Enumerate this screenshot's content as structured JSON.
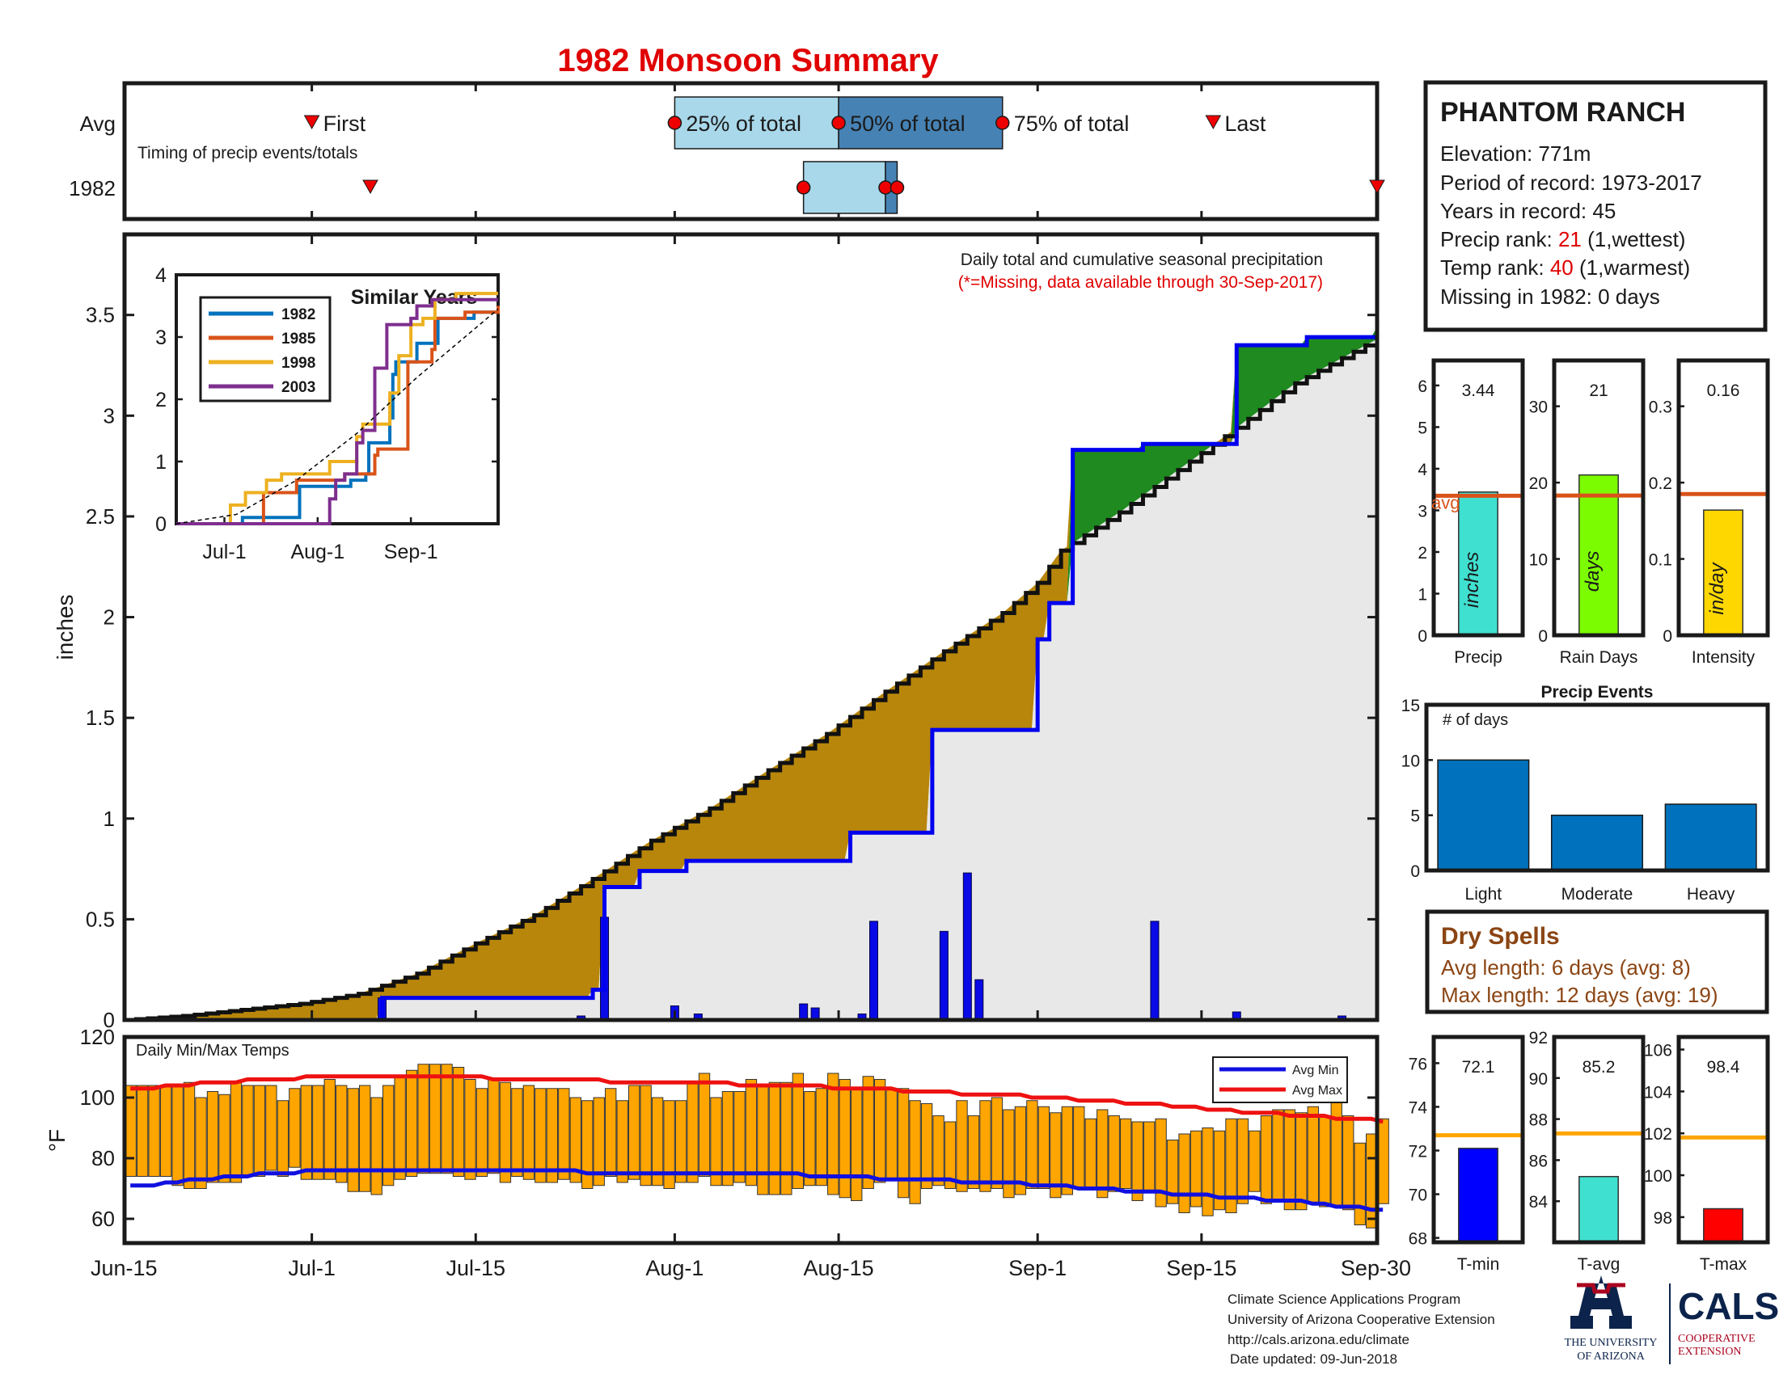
{
  "title": "1982 Monsoon Summary",
  "colors": {
    "title": "#e00000",
    "cum_precip": "#0000ee",
    "avg_line": "#111111",
    "above_avg": "#1f8a1f",
    "below_avg": "#b8860b",
    "bg_fill": "#e8e8e8",
    "bars": "#0a0ae6",
    "temp_bar": "#ffa500",
    "avg_min": "#1010e0",
    "avg_max": "#ee1111"
  },
  "timing": {
    "row_labels": [
      "Avg",
      "1982"
    ],
    "note": "Timing of precip events/totals",
    "first_label": "First",
    "last_label": "Last",
    "q25_label": "25% of total",
    "q50_label": "50% of total",
    "q75_label": "75% of total",
    "avg": {
      "first": 16,
      "q25": 47,
      "q50": 61,
      "q75": 75,
      "last": 93
    },
    "year": {
      "first": 21,
      "q25": 58,
      "q50": 65,
      "q75": 66,
      "last": 107
    }
  },
  "main": {
    "ylabel": "inches",
    "yticks": [
      "0",
      "0.5",
      "1",
      "1.5",
      "2",
      "2.5",
      "3",
      "3.5"
    ],
    "note1": "Daily total and cumulative seasonal precipitation",
    "note2": "(*=Missing, data available through 30-Sep-2017)"
  },
  "chart_data": [
    {
      "type": "area",
      "name": "cumulative_precip",
      "x_unit": "day of season (0 = Jun-15, 107 = Sep-30)",
      "xlim": [
        0,
        107
      ],
      "ylim": [
        0,
        3.9
      ],
      "ylabel": "inches",
      "series": [
        {
          "name": "1982 cumulative",
          "x": [
            0,
            22,
            40,
            41,
            43,
            44,
            48,
            62,
            62,
            69,
            69,
            75,
            78,
            79,
            81,
            87,
            95,
            101,
            107
          ],
          "y": [
            0,
            0.11,
            0.15,
            0.66,
            0.66,
            0.74,
            0.79,
            0.79,
            0.93,
            0.93,
            1.44,
            1.44,
            1.89,
            2.07,
            2.83,
            2.86,
            3.35,
            3.39,
            3.44
          ]
        },
        {
          "name": "average cumulative",
          "x": [
            0,
            5,
            10,
            15,
            20,
            25,
            30,
            35,
            40,
            45,
            50,
            55,
            60,
            65,
            70,
            75,
            78,
            80,
            85,
            90,
            95,
            100,
            107
          ],
          "y": [
            0,
            0.02,
            0.05,
            0.08,
            0.13,
            0.23,
            0.38,
            0.52,
            0.7,
            0.89,
            1.05,
            1.24,
            1.42,
            1.63,
            1.83,
            2.02,
            2.17,
            2.33,
            2.52,
            2.73,
            2.94,
            3.16,
            3.38
          ]
        }
      ],
      "daily_bars": [
        {
          "x": 22,
          "y": 0.11
        },
        {
          "x": 39,
          "y": 0.02
        },
        {
          "x": 41,
          "y": 0.51
        },
        {
          "x": 47,
          "y": 0.07
        },
        {
          "x": 49,
          "y": 0.03
        },
        {
          "x": 58,
          "y": 0.08
        },
        {
          "x": 59,
          "y": 0.06
        },
        {
          "x": 63,
          "y": 0.03
        },
        {
          "x": 64,
          "y": 0.49
        },
        {
          "x": 70,
          "y": 0.44
        },
        {
          "x": 72,
          "y": 0.73
        },
        {
          "x": 73,
          "y": 0.2
        },
        {
          "x": 88,
          "y": 0.49
        },
        {
          "x": 95,
          "y": 0.04
        },
        {
          "x": 104,
          "y": 0.02
        }
      ]
    },
    {
      "type": "line",
      "name": "similar_years",
      "title": "Similar Years",
      "x_unit": "day of season",
      "xlim": [
        0,
        107
      ],
      "ylim": [
        0,
        4
      ],
      "xticks": [
        "Jul-1",
        "Aug-1",
        "Sep-1"
      ],
      "yticks": [
        "0",
        "1",
        "2",
        "3",
        "4"
      ],
      "series": [
        {
          "name": "1982",
          "color": "#0072bd",
          "x": [
            0,
            21,
            22,
            40,
            41,
            58,
            63,
            64,
            69,
            71,
            72,
            73,
            80,
            86,
            87,
            99,
            107
          ],
          "y": [
            0,
            0,
            0.1,
            0.1,
            0.6,
            0.7,
            0.8,
            1.3,
            1.3,
            1.7,
            2.4,
            2.6,
            2.9,
            2.9,
            3.3,
            3.4,
            3.44
          ]
        },
        {
          "name": "1985",
          "color": "#d95319",
          "x": [
            0,
            28,
            29,
            40,
            46,
            56,
            66,
            67,
            69,
            76,
            77,
            85,
            86,
            96,
            107
          ],
          "y": [
            0,
            0,
            0.5,
            0.7,
            0.7,
            0.8,
            1.1,
            1.2,
            1.2,
            1.2,
            2.6,
            2.8,
            3.3,
            3.4,
            3.5
          ]
        },
        {
          "name": "1998",
          "color": "#edb120",
          "x": [
            0,
            17,
            18,
            23,
            30,
            34,
            35,
            47,
            51,
            55,
            60,
            62,
            71,
            74,
            78,
            82,
            86,
            93,
            99,
            107
          ],
          "y": [
            0,
            0,
            0.3,
            0.5,
            0.7,
            0.7,
            0.8,
            0.8,
            1.0,
            1.0,
            1.4,
            1.6,
            2.1,
            2.7,
            3.2,
            3.3,
            3.6,
            3.7,
            3.7,
            3.7
          ]
        },
        {
          "name": "2003",
          "color": "#7e2f8e",
          "x": [
            0,
            38,
            51,
            53,
            56,
            60,
            62,
            66,
            70,
            78,
            80,
            85,
            90,
            107
          ],
          "y": [
            0,
            0,
            0.4,
            0.7,
            0.8,
            1.3,
            1.5,
            2.5,
            3.2,
            3.3,
            3.5,
            3.6,
            3.6,
            3.6
          ]
        },
        {
          "name": "Avg",
          "color": "#000000",
          "dashed": true,
          "x": [
            0,
            20,
            40,
            60,
            80,
            107
          ],
          "y": [
            0,
            0.15,
            0.7,
            1.45,
            2.35,
            3.45
          ]
        }
      ]
    },
    {
      "type": "bar",
      "name": "precip_totals",
      "categories": [
        "Precip"
      ],
      "values": [
        3.44
      ],
      "avg": 3.35,
      "ylim": [
        0,
        6.6
      ],
      "yticks": [
        "0",
        "1",
        "2",
        "3",
        "4",
        "5",
        "6"
      ],
      "color": "#40e0d0",
      "unit": "inches",
      "value_label": "3.44",
      "avg_label": "avg"
    },
    {
      "type": "bar",
      "name": "rain_days",
      "categories": [
        "Rain Days"
      ],
      "values": [
        21
      ],
      "avg": 18.3,
      "ylim": [
        0,
        36
      ],
      "yticks": [
        "0",
        "10",
        "20",
        "30"
      ],
      "color": "#7cfc00",
      "unit": "days",
      "value_label": "21"
    },
    {
      "type": "bar",
      "name": "intensity",
      "categories": [
        "Intensity"
      ],
      "values": [
        0.164
      ],
      "avg": 0.185,
      "ylim": [
        0,
        0.36
      ],
      "yticks": [
        "0",
        "0.1",
        "0.2",
        "0.3"
      ],
      "color": "#ffd700",
      "unit": "in/day",
      "value_label": "0.16"
    },
    {
      "type": "bar",
      "name": "precip_events",
      "title": "Precip Events",
      "ylabel": "# of days",
      "categories": [
        "Light",
        "Moderate",
        "Heavy"
      ],
      "values": [
        10,
        5,
        6
      ],
      "ylim": [
        0,
        15
      ],
      "yticks": [
        "0",
        "5",
        "10",
        "15"
      ],
      "color": "#0072bd"
    },
    {
      "type": "bar",
      "name": "daily_temps",
      "title": "Daily Min/Max Temps",
      "ylabel": "°F",
      "xlim": [
        0,
        107
      ],
      "ylim": [
        52,
        120
      ],
      "yticks": [
        "60",
        "80",
        "100",
        "120"
      ],
      "xticks": [
        "Jun-15",
        "Jul-1",
        "Jul-15",
        "Aug-1",
        "Aug-15",
        "Sep-1",
        "Sep-15",
        "Sep-30"
      ],
      "tmax": [
        104,
        104,
        104,
        104,
        104,
        105,
        100,
        102,
        101,
        105,
        104,
        104,
        104,
        99,
        103,
        104,
        104,
        106,
        104,
        103,
        104,
        100,
        104,
        107,
        109,
        111,
        111,
        111,
        110,
        106,
        103,
        106,
        105,
        103,
        104,
        103,
        103,
        103,
        100,
        99,
        100,
        103,
        99,
        104,
        104,
        100,
        99,
        99,
        105,
        108,
        100,
        102,
        102,
        106,
        104,
        105,
        105,
        108,
        102,
        103,
        108,
        106,
        103,
        107,
        106,
        103,
        103,
        99,
        98,
        94,
        92,
        99,
        94,
        99,
        100,
        96,
        97,
        99,
        97,
        95,
        97,
        97,
        93,
        96,
        94,
        93,
        92,
        92,
        93,
        86,
        88,
        89,
        90,
        89,
        93,
        93,
        89,
        94,
        96,
        96,
        95,
        97,
        94,
        99,
        94,
        85,
        88,
        93
      ],
      "tmin": [
        74,
        74,
        74,
        74,
        71,
        70,
        70,
        72,
        72,
        72,
        74,
        74,
        76,
        74,
        77,
        73,
        73,
        73,
        72,
        69,
        69,
        68,
        71,
        73,
        74,
        75,
        75,
        75,
        74,
        73,
        74,
        75,
        72,
        74,
        73,
        72,
        72,
        73,
        72,
        70,
        71,
        74,
        72,
        73,
        71,
        71,
        70,
        72,
        72,
        74,
        71,
        71,
        72,
        71,
        68,
        68,
        68,
        70,
        71,
        71,
        68,
        67,
        66,
        70,
        72,
        73,
        67,
        65,
        70,
        71,
        70,
        69,
        70,
        69,
        70,
        67,
        68,
        70,
        70,
        67,
        68,
        70,
        70,
        67,
        69,
        70,
        66,
        69,
        64,
        65,
        62,
        64,
        61,
        63,
        62,
        65,
        69,
        65,
        66,
        63,
        63,
        65,
        64,
        64,
        63,
        58,
        57,
        65
      ],
      "avg_min": [
        71,
        71,
        71,
        72,
        72,
        73,
        73,
        73,
        74,
        74,
        74,
        75,
        75,
        75,
        75,
        76,
        76,
        76,
        76,
        76,
        76,
        76,
        76,
        76,
        76,
        76,
        76,
        76,
        76,
        76,
        76,
        76,
        76,
        76,
        76,
        76,
        76,
        76,
        76,
        75,
        75,
        75,
        75,
        75,
        75,
        75,
        75,
        75,
        75,
        75,
        75,
        75,
        75,
        75,
        75,
        75,
        75,
        75,
        74,
        74,
        74,
        74,
        74,
        74,
        73,
        73,
        73,
        73,
        73,
        73,
        73,
        72,
        72,
        72,
        72,
        72,
        72,
        71,
        71,
        71,
        71,
        70,
        70,
        70,
        70,
        69,
        69,
        69,
        69,
        68,
        68,
        68,
        68,
        67,
        67,
        67,
        67,
        66,
        66,
        66,
        66,
        65,
        65,
        64,
        64,
        64,
        63,
        63
      ],
      "avg_max": [
        103,
        103,
        103,
        104,
        104,
        104,
        105,
        105,
        105,
        105,
        106,
        106,
        106,
        106,
        106,
        107,
        107,
        107,
        107,
        107,
        107,
        107,
        107,
        107,
        107,
        107,
        107,
        107,
        107,
        107,
        107,
        106,
        106,
        106,
        106,
        106,
        106,
        106,
        106,
        106,
        106,
        105,
        105,
        105,
        105,
        105,
        105,
        105,
        105,
        105,
        105,
        105,
        104,
        104,
        104,
        104,
        104,
        104,
        104,
        104,
        103,
        103,
        103,
        103,
        103,
        103,
        102,
        102,
        102,
        102,
        102,
        101,
        101,
        101,
        101,
        101,
        101,
        100,
        100,
        100,
        100,
        99,
        99,
        99,
        99,
        98,
        98,
        98,
        98,
        97,
        97,
        97,
        96,
        96,
        96,
        95,
        95,
        95,
        95,
        94,
        94,
        94,
        94,
        93,
        93,
        93,
        93,
        92
      ],
      "legend": [
        "Avg Min",
        "Avg Max"
      ]
    },
    {
      "type": "bar",
      "name": "tmin_mean",
      "categories": [
        "T-min"
      ],
      "values": [
        72.1
      ],
      "avg": 72.7,
      "ylim": [
        67.8,
        77.2
      ],
      "yticks": [
        "68",
        "70",
        "72",
        "74",
        "76"
      ],
      "color": "#0000ff",
      "value_label": "72.1"
    },
    {
      "type": "bar",
      "name": "tavg_mean",
      "categories": [
        "T-avg"
      ],
      "values": [
        85.2
      ],
      "avg": 87.3,
      "ylim": [
        82.0,
        92.0
      ],
      "yticks": [
        "84",
        "86",
        "88",
        "90",
        "92"
      ],
      "color": "#40e0d0",
      "value_label": "85.2"
    },
    {
      "type": "bar",
      "name": "tmax_mean",
      "categories": [
        "T-max"
      ],
      "values": [
        98.4
      ],
      "avg": 101.8,
      "ylim": [
        96.8,
        106.6
      ],
      "yticks": [
        "98",
        "100",
        "102",
        "104",
        "106"
      ],
      "color": "#ff0000",
      "value_label": "98.4"
    }
  ],
  "xaxis_labels": [
    "Jun-15",
    "Jul-1",
    "Jul-15",
    "Aug-1",
    "Aug-15",
    "Sep-1",
    "Sep-15",
    "Sep-30"
  ],
  "station": {
    "name": "PHANTOM RANCH",
    "elevation": "Elevation: 771m",
    "period": "Period of record: 1973-2017",
    "years": "Years in record: 45",
    "precip_rank_label": "Precip rank: ",
    "precip_rank": "21",
    "precip_rank_note": " (1,wettest)",
    "temp_rank_label": "Temp rank: ",
    "temp_rank": "40",
    "temp_rank_note": " (1,warmest)",
    "missing": "Missing in 1982: 0 days"
  },
  "dry_spells": {
    "title": "Dry Spells",
    "avg_length": "Avg length: 6 days (avg: 8)",
    "max_length": "Max length: 12 days (avg: 19)"
  },
  "footer": {
    "line1": "Climate Science Applications Program",
    "line2": "University of Arizona Cooperative Extension",
    "line3": "http://cals.arizona.edu/climate",
    "line4": "Date updated: 09-Jun-2018"
  },
  "logo": {
    "ua_line1": "THE UNIVERSITY",
    "ua_line2": "OF ARIZONA",
    "cals": "CALS",
    "coop1": "COOPERATIVE",
    "coop2": "EXTENSION"
  }
}
